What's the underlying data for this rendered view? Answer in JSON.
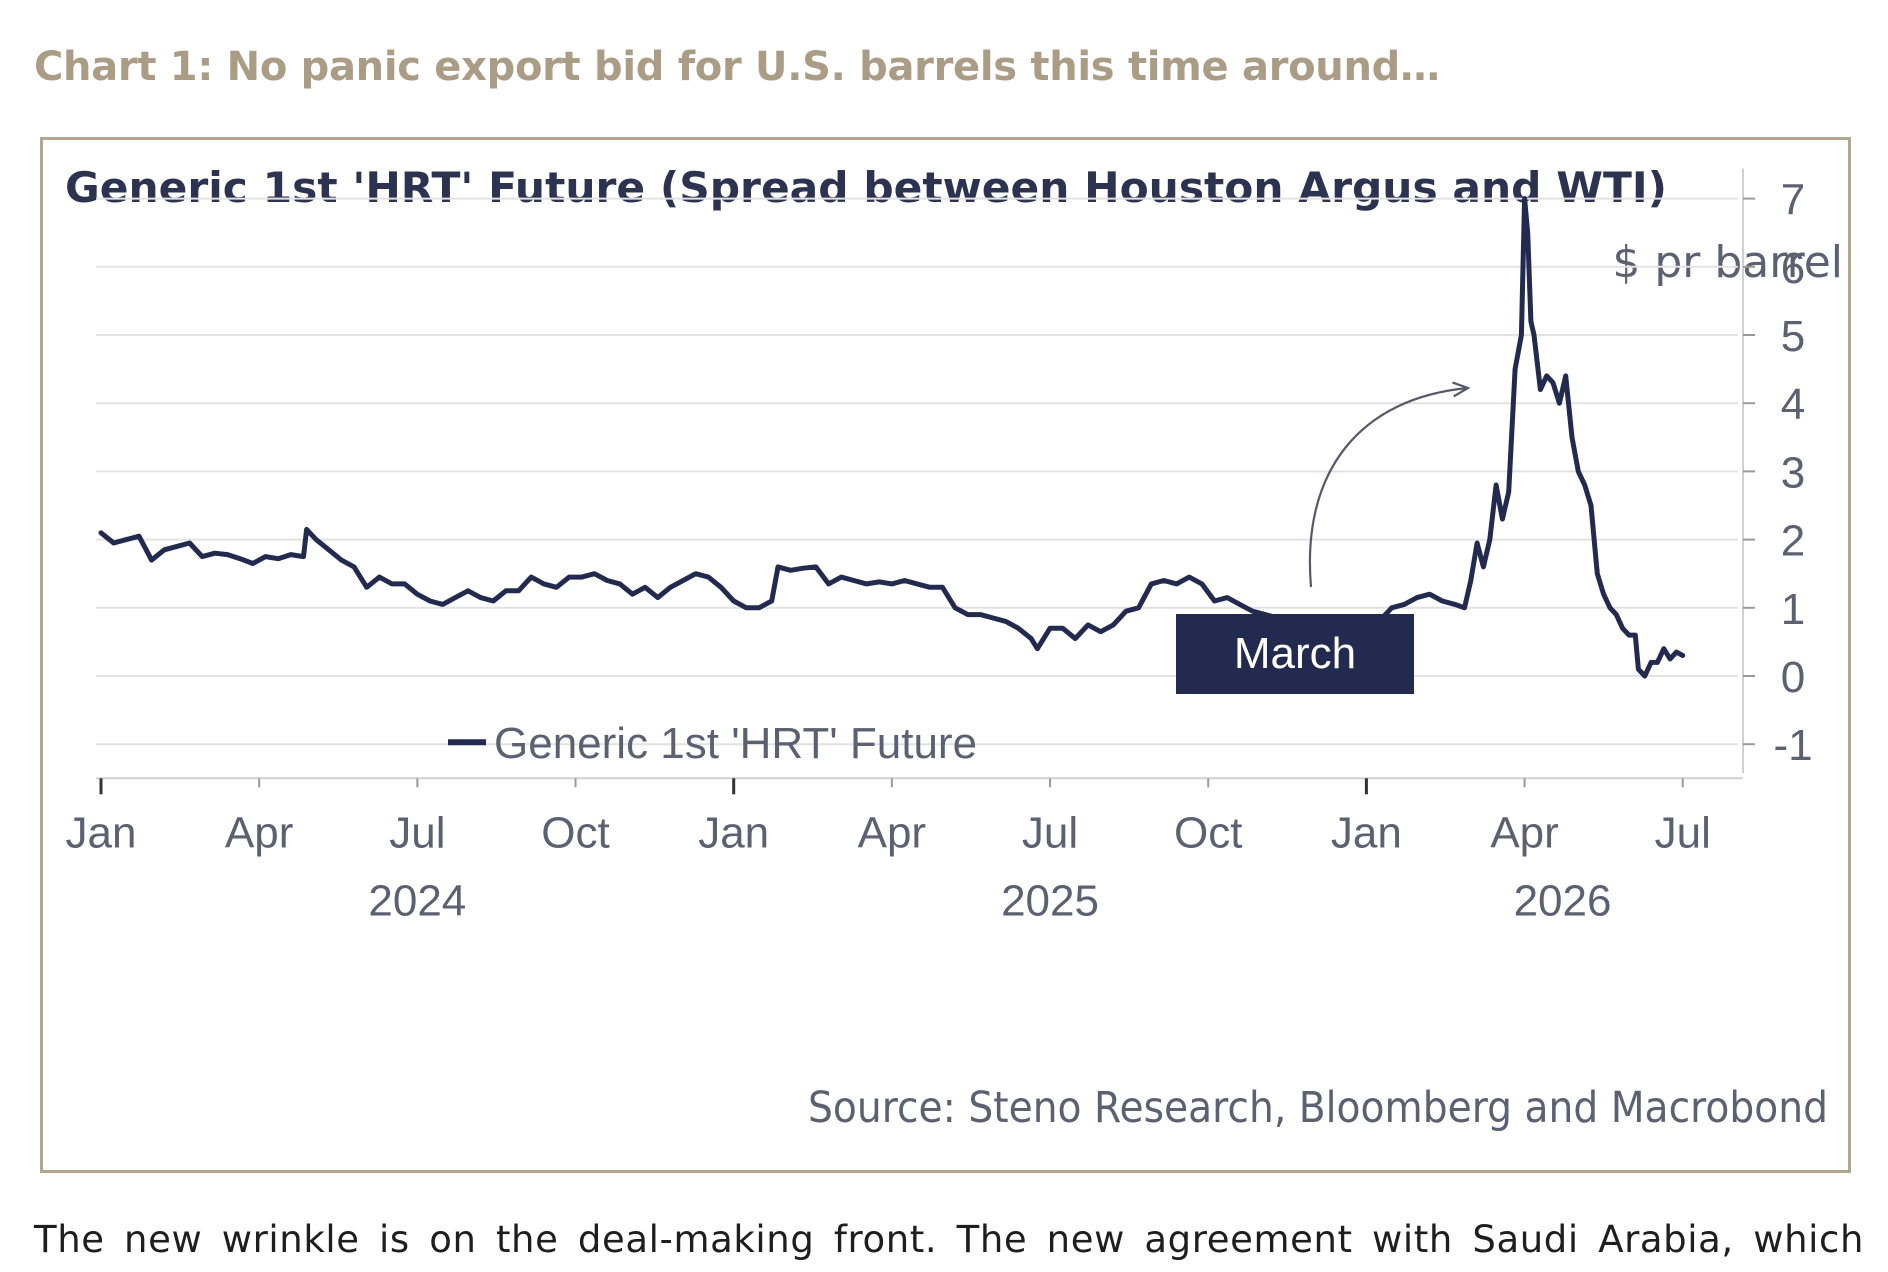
{
  "page": {
    "heading": "Chart 1: No panic export bid for U.S. barrels this time around…",
    "paragraph": "The new wrinkle is on the deal-making front. The new agreement with Saudi Arabia, which"
  },
  "chart_data": {
    "type": "line",
    "title": "Generic 1st 'HRT' Future (Spread between Houston Argus and WTI)",
    "unit_label": "$ pr barrel",
    "ylim": [
      -1.5,
      7.5
    ],
    "yticks": [
      7,
      6,
      5,
      4,
      3,
      2,
      1,
      0,
      -1
    ],
    "xlim": [
      2024.0,
      2026.6
    ],
    "x_month_ticks": [
      {
        "x": 2024.0,
        "label": "Jan"
      },
      {
        "x": 2024.25,
        "label": "Apr"
      },
      {
        "x": 2024.5,
        "label": "Jul"
      },
      {
        "x": 2024.75,
        "label": "Oct"
      },
      {
        "x": 2025.0,
        "label": "Jan"
      },
      {
        "x": 2025.25,
        "label": "Apr"
      },
      {
        "x": 2025.5,
        "label": "Jul"
      },
      {
        "x": 2025.75,
        "label": "Oct"
      },
      {
        "x": 2026.0,
        "label": "Jan"
      },
      {
        "x": 2026.25,
        "label": "Apr"
      },
      {
        "x": 2026.5,
        "label": "Jul"
      }
    ],
    "x_year_labels": [
      {
        "x": 2024.5,
        "label": "2024"
      },
      {
        "x": 2025.5,
        "label": "2025"
      },
      {
        "x": 2026.31,
        "label": "2026"
      }
    ],
    "grid": true,
    "legend_position": "bottom-left",
    "source": "Source: Steno Research, Bloomberg and Macrobond",
    "annotation": {
      "label": "March",
      "fill": "#232a4f"
    },
    "series": [
      {
        "name": "Generic 1st 'HRT' Future",
        "color": "#232a4f",
        "points": [
          [
            2024.0,
            2.1
          ],
          [
            2024.02,
            1.95
          ],
          [
            2024.04,
            2.0
          ],
          [
            2024.06,
            2.05
          ],
          [
            2024.08,
            1.7
          ],
          [
            2024.1,
            1.85
          ],
          [
            2024.12,
            1.9
          ],
          [
            2024.14,
            1.95
          ],
          [
            2024.16,
            1.75
          ],
          [
            2024.18,
            1.8
          ],
          [
            2024.2,
            1.78
          ],
          [
            2024.22,
            1.72
          ],
          [
            2024.24,
            1.65
          ],
          [
            2024.26,
            1.75
          ],
          [
            2024.28,
            1.72
          ],
          [
            2024.3,
            1.78
          ],
          [
            2024.32,
            1.75
          ],
          [
            2024.325,
            2.15
          ],
          [
            2024.34,
            2.0
          ],
          [
            2024.36,
            1.85
          ],
          [
            2024.38,
            1.7
          ],
          [
            2024.4,
            1.6
          ],
          [
            2024.42,
            1.3
          ],
          [
            2024.44,
            1.45
          ],
          [
            2024.46,
            1.35
          ],
          [
            2024.48,
            1.35
          ],
          [
            2024.5,
            1.2
          ],
          [
            2024.52,
            1.1
          ],
          [
            2024.54,
            1.05
          ],
          [
            2024.56,
            1.15
          ],
          [
            2024.58,
            1.25
          ],
          [
            2024.6,
            1.15
          ],
          [
            2024.62,
            1.1
          ],
          [
            2024.64,
            1.25
          ],
          [
            2024.66,
            1.25
          ],
          [
            2024.68,
            1.45
          ],
          [
            2024.7,
            1.35
          ],
          [
            2024.72,
            1.3
          ],
          [
            2024.74,
            1.45
          ],
          [
            2024.76,
            1.45
          ],
          [
            2024.78,
            1.5
          ],
          [
            2024.8,
            1.4
          ],
          [
            2024.82,
            1.35
          ],
          [
            2024.84,
            1.2
          ],
          [
            2024.86,
            1.3
          ],
          [
            2024.88,
            1.15
          ],
          [
            2024.9,
            1.3
          ],
          [
            2024.92,
            1.4
          ],
          [
            2024.94,
            1.5
          ],
          [
            2024.96,
            1.45
          ],
          [
            2024.98,
            1.3
          ],
          [
            2025.0,
            1.1
          ],
          [
            2025.02,
            1.0
          ],
          [
            2025.04,
            1.0
          ],
          [
            2025.06,
            1.1
          ],
          [
            2025.07,
            1.6
          ],
          [
            2025.09,
            1.55
          ],
          [
            2025.11,
            1.58
          ],
          [
            2025.13,
            1.6
          ],
          [
            2025.15,
            1.35
          ],
          [
            2025.17,
            1.45
          ],
          [
            2025.19,
            1.4
          ],
          [
            2025.21,
            1.35
          ],
          [
            2025.23,
            1.38
          ],
          [
            2025.25,
            1.35
          ],
          [
            2025.27,
            1.4
          ],
          [
            2025.29,
            1.35
          ],
          [
            2025.31,
            1.3
          ],
          [
            2025.33,
            1.3
          ],
          [
            2025.35,
            1.0
          ],
          [
            2025.37,
            0.9
          ],
          [
            2025.39,
            0.9
          ],
          [
            2025.41,
            0.85
          ],
          [
            2025.43,
            0.8
          ],
          [
            2025.45,
            0.7
          ],
          [
            2025.47,
            0.55
          ],
          [
            2025.48,
            0.4
          ],
          [
            2025.5,
            0.7
          ],
          [
            2025.52,
            0.7
          ],
          [
            2025.54,
            0.55
          ],
          [
            2025.56,
            0.75
          ],
          [
            2025.58,
            0.65
          ],
          [
            2025.6,
            0.75
          ],
          [
            2025.62,
            0.95
          ],
          [
            2025.64,
            1.0
          ],
          [
            2025.66,
            1.35
          ],
          [
            2025.68,
            1.4
          ],
          [
            2025.7,
            1.35
          ],
          [
            2025.72,
            1.45
          ],
          [
            2025.74,
            1.35
          ],
          [
            2025.76,
            1.1
          ],
          [
            2025.78,
            1.15
          ],
          [
            2025.8,
            1.05
          ],
          [
            2025.82,
            0.95
          ],
          [
            2025.84,
            0.9
          ],
          [
            2025.86,
            0.85
          ],
          [
            2025.88,
            0.85
          ],
          [
            2025.9,
            0.8
          ],
          [
            2025.92,
            0.85
          ],
          [
            2025.94,
            0.75
          ],
          [
            2025.96,
            0.7
          ],
          [
            2025.98,
            0.7
          ],
          [
            2026.0,
            0.75
          ],
          [
            2026.02,
            0.8
          ],
          [
            2026.04,
            1.0
          ],
          [
            2026.06,
            1.05
          ],
          [
            2026.08,
            1.15
          ],
          [
            2026.1,
            1.2
          ],
          [
            2026.12,
            1.1
          ],
          [
            2026.14,
            1.05
          ],
          [
            2026.155,
            1.0
          ],
          [
            2026.165,
            1.4
          ],
          [
            2026.175,
            1.95
          ],
          [
            2026.185,
            1.6
          ],
          [
            2026.195,
            2.0
          ],
          [
            2026.205,
            2.8
          ],
          [
            2026.215,
            2.3
          ],
          [
            2026.225,
            2.7
          ],
          [
            2026.235,
            4.5
          ],
          [
            2026.245,
            5.0
          ],
          [
            2026.25,
            7.0
          ],
          [
            2026.255,
            6.5
          ],
          [
            2026.26,
            5.2
          ],
          [
            2026.265,
            5.0
          ],
          [
            2026.275,
            4.2
          ],
          [
            2026.285,
            4.4
          ],
          [
            2026.295,
            4.3
          ],
          [
            2026.305,
            4.0
          ],
          [
            2026.315,
            4.4
          ],
          [
            2026.325,
            3.5
          ],
          [
            2026.335,
            3.0
          ],
          [
            2026.345,
            2.8
          ],
          [
            2026.355,
            2.5
          ],
          [
            2026.365,
            1.5
          ],
          [
            2026.375,
            1.2
          ],
          [
            2026.385,
            1.0
          ],
          [
            2026.395,
            0.9
          ],
          [
            2026.405,
            0.7
          ],
          [
            2026.415,
            0.6
          ],
          [
            2026.425,
            0.6
          ],
          [
            2026.43,
            0.1
          ],
          [
            2026.44,
            0.0
          ],
          [
            2026.45,
            0.2
          ],
          [
            2026.46,
            0.2
          ],
          [
            2026.47,
            0.4
          ],
          [
            2026.48,
            0.25
          ],
          [
            2026.49,
            0.35
          ],
          [
            2026.5,
            0.3
          ]
        ]
      }
    ]
  }
}
